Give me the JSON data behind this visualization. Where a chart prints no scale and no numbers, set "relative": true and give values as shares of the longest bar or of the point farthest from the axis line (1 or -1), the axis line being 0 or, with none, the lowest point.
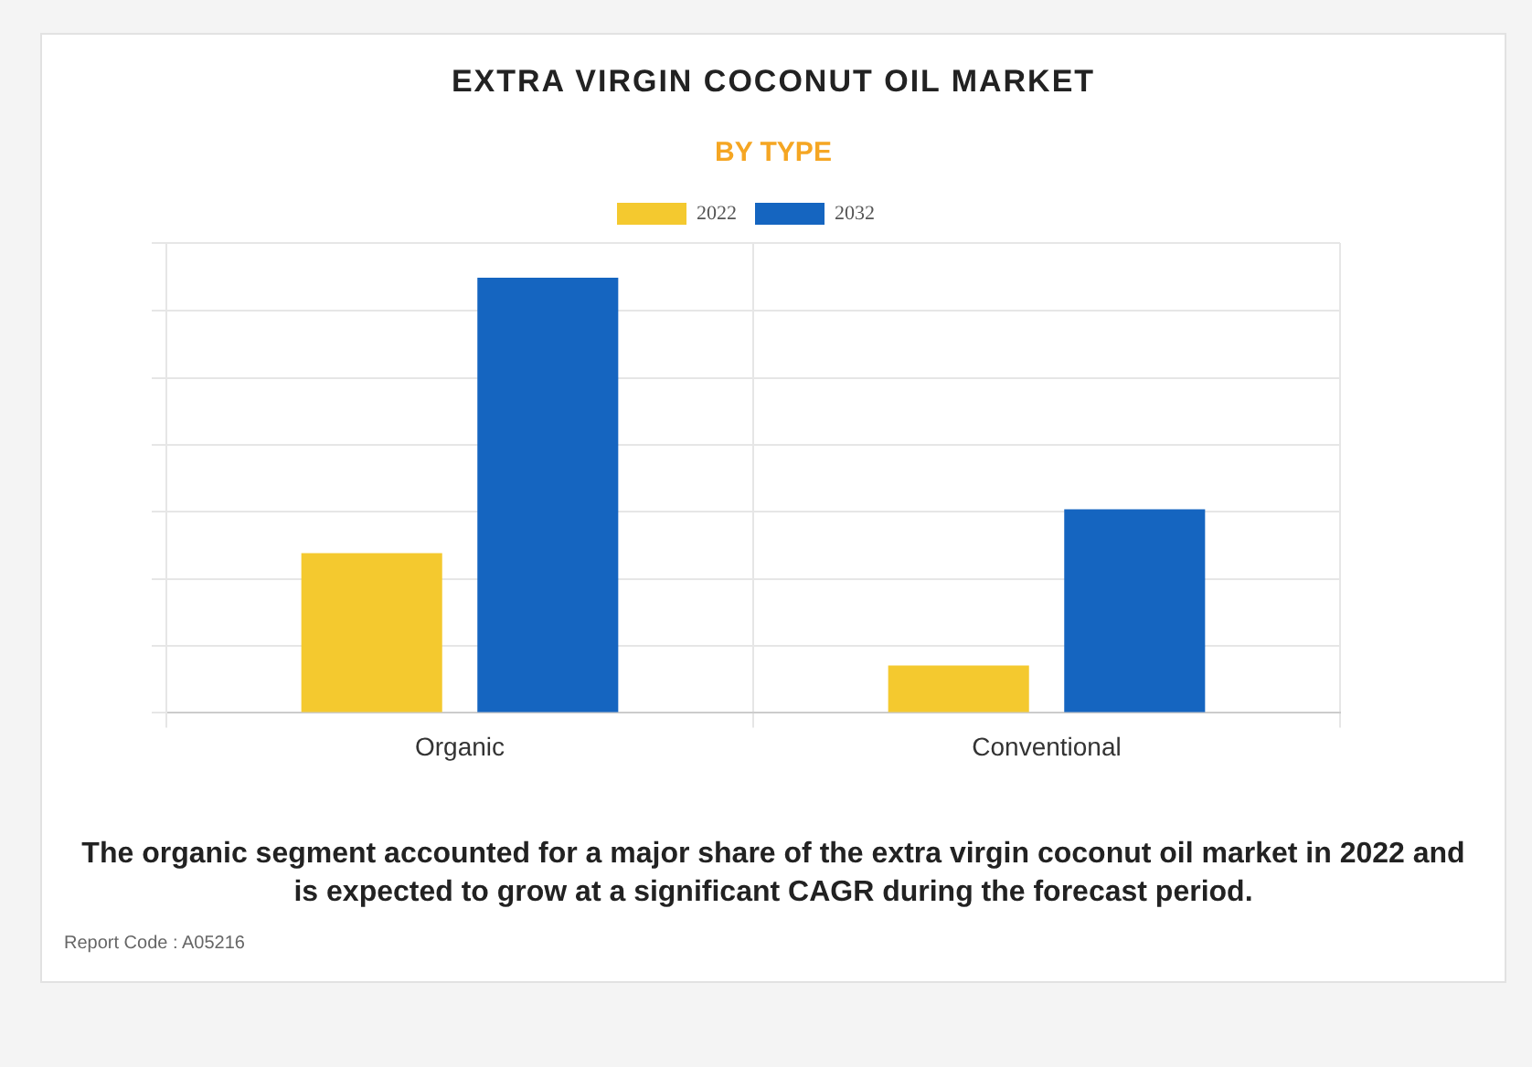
{
  "chart_data": {
    "type": "bar",
    "title": "EXTRA VIRGIN COCONUT OIL MARKET",
    "subtitle": "BY TYPE",
    "categories": [
      "Organic",
      "Conventional"
    ],
    "series": [
      {
        "name": "2022",
        "color": "#f4c92f",
        "values": [
          0.367,
          0.109
        ]
      },
      {
        "name": "2032",
        "color": "#1565c0",
        "values": [
          1,
          0.468
        ]
      }
    ],
    "relative": true,
    "grid": true,
    "legend": "top",
    "annotations": [
      "The organic segment accounted for a major share of the extra virgin coconut oil market in 2022 and is expected to grow at a significant CAGR during the forecast period.",
      "Report Code : A05216"
    ]
  }
}
